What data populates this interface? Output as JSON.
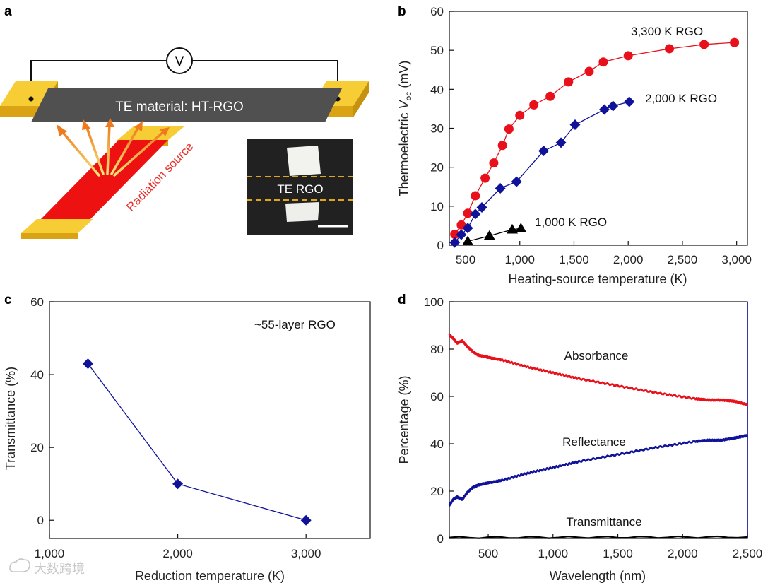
{
  "panels": {
    "a": {
      "letter": "a",
      "voltmeter": "V",
      "bar_label": "TE material: HT-RGO",
      "source_label": "Radiation source",
      "inset_label": "TE RGO"
    },
    "b": {
      "letter": "b"
    },
    "c": {
      "letter": "c"
    },
    "d": {
      "letter": "d"
    }
  },
  "colors": {
    "red": "#e8101a",
    "blue": "#10129a",
    "black": "#000000",
    "gold": "#f0be1a",
    "bar_gray": "#4f4f4f"
  },
  "chart_data": [
    {
      "id": "b",
      "type": "line",
      "xlabel": "Heating-source temperature (K)",
      "ylabel_main": "Thermoelectric ",
      "ylabel_v": "V",
      "ylabel_sub": "oc",
      "ylabel_unit": " (mV)",
      "xlim": [
        350,
        3100
      ],
      "ylim": [
        0,
        60
      ],
      "xticks": [
        500,
        1000,
        1500,
        2000,
        2500,
        3000
      ],
      "xtick_labels": [
        "500",
        "1,000",
        "1,500",
        "2,000",
        "2,500",
        "3,000"
      ],
      "yticks": [
        0,
        10,
        20,
        30,
        40,
        50,
        60
      ],
      "series": [
        {
          "name": "3,300 K RGO",
          "marker": "circle",
          "color": "#e8101a",
          "x": [
            400,
            460,
            520,
            590,
            680,
            760,
            840,
            900,
            1000,
            1130,
            1280,
            1450,
            1640,
            1770,
            2000,
            2380,
            2700,
            2980
          ],
          "y": [
            2.8,
            5.2,
            8.2,
            12.7,
            17.2,
            21.1,
            25.6,
            29.8,
            33.3,
            36.0,
            38.2,
            41.9,
            44.6,
            47.0,
            48.6,
            50.4,
            51.5,
            52.0
          ]
        },
        {
          "name": "2,000 K RGO",
          "marker": "diamond",
          "color": "#10129a",
          "x": [
            400,
            460,
            520,
            590,
            650,
            820,
            970,
            1220,
            1380,
            1510,
            1780,
            1860,
            2010
          ],
          "y": [
            0.7,
            2.7,
            4.4,
            8.0,
            9.7,
            14.6,
            16.3,
            24.2,
            26.3,
            30.9,
            34.8,
            35.7,
            36.8
          ]
        },
        {
          "name": "1,000 K RGO",
          "marker": "triangle",
          "color": "#000000",
          "x": [
            520,
            720,
            930,
            1010
          ],
          "y": [
            1.0,
            2.4,
            4.0,
            4.3
          ]
        }
      ]
    },
    {
      "id": "c",
      "type": "line",
      "xlabel": "Reduction temperature (K)",
      "ylabel": "Transmittance (%)",
      "annotation": "~55-layer RGO",
      "xlim": [
        1000,
        3500
      ],
      "ylim": [
        -5,
        60
      ],
      "xticks": [
        1000,
        2000,
        3000
      ],
      "xtick_labels": [
        "1,000",
        "2,000",
        "3,000"
      ],
      "yticks": [
        0,
        20,
        40,
        60
      ],
      "series": [
        {
          "marker": "diamond",
          "color": "#10129a",
          "x": [
            1300,
            2000,
            3000
          ],
          "y": [
            43,
            10,
            0
          ]
        }
      ]
    },
    {
      "id": "d",
      "type": "line",
      "xlabel": "Wavelength (nm)",
      "ylabel": "Percentage (%)",
      "xlim": [
        200,
        2500
      ],
      "ylim": [
        0,
        100
      ],
      "xticks": [
        500,
        1000,
        1500,
        2000,
        2500
      ],
      "xtick_labels": [
        "500",
        "1,000",
        "1,500",
        "2,000",
        "2,500"
      ],
      "yticks": [
        0,
        20,
        40,
        60,
        80,
        100
      ],
      "series": [
        {
          "name": "Absorbance",
          "color": "#e8101a",
          "x": [
            200,
            230,
            260,
            300,
            340,
            380,
            420,
            500,
            600,
            800,
            1000,
            1200,
            1500,
            1800,
            2100,
            2200,
            2300,
            2400,
            2500
          ],
          "y": [
            86,
            84.5,
            82.5,
            83.5,
            81,
            79,
            77.5,
            76.5,
            75.5,
            72.5,
            70,
            67.5,
            64.5,
            61.5,
            59,
            58.5,
            58.5,
            58,
            56.5
          ]
        },
        {
          "name": "Reflectance",
          "color": "#10129a",
          "x": [
            200,
            230,
            260,
            300,
            340,
            380,
            420,
            500,
            600,
            800,
            1000,
            1200,
            1500,
            1800,
            2100,
            2200,
            2300,
            2400,
            2500
          ],
          "y": [
            14,
            16.5,
            17.5,
            16.5,
            19.5,
            21.5,
            22.5,
            23.5,
            24.5,
            27.5,
            30,
            32.5,
            35.5,
            38.5,
            41,
            41.5,
            41.5,
            42.5,
            43.5
          ]
        },
        {
          "name": "Transmittance",
          "color": "#000000",
          "x": [
            200,
            2500
          ],
          "y": [
            0.4,
            0.6
          ]
        }
      ]
    }
  ],
  "watermark": "大数跨境"
}
